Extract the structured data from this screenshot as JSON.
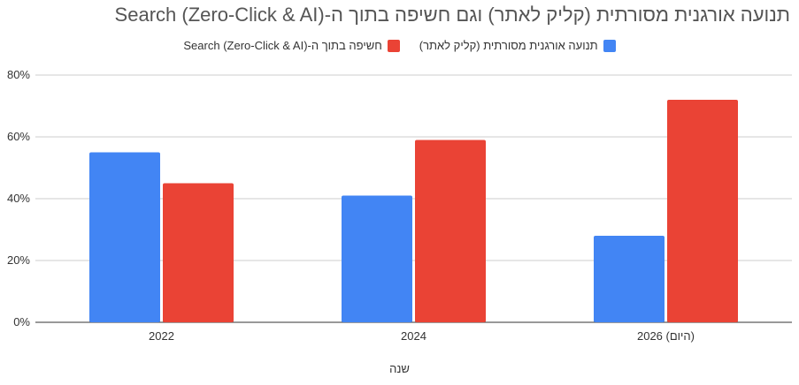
{
  "chart_data": {
    "type": "bar",
    "title": "תנועה אורגנית מסורתית (קליק לאתר) וגם חשיפה בתוך ה-Search (Zero-Click & AI)",
    "xlabel": "שנה",
    "ylabel": "",
    "categories": [
      "2022",
      "2024",
      "2026 (היום)"
    ],
    "series": [
      {
        "name": "תנועה אורגנית מסורתית (קליק לאתר)",
        "color": "#4285F4",
        "values": [
          55,
          41,
          28
        ]
      },
      {
        "name": "חשיפה בתוך ה-Search (Zero-Click & AI)",
        "color": "#EA4335",
        "values": [
          45,
          59,
          72
        ]
      }
    ],
    "ylim": [
      0,
      80
    ],
    "yticks": [
      "0%",
      "20%",
      "40%",
      "60%",
      "80%"
    ],
    "grid": true,
    "legend_position": "top"
  }
}
